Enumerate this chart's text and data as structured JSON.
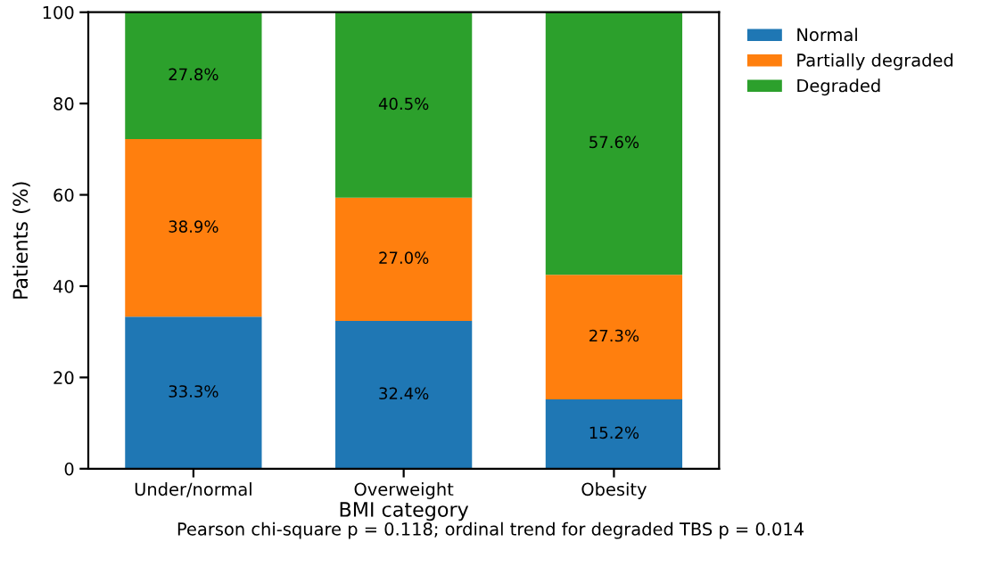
{
  "chart_data": {
    "type": "bar",
    "stacked": true,
    "xlabel": "BMI category",
    "ylabel": "Patients (%)",
    "categories": [
      "Under/normal",
      "Overweight",
      "Obesity"
    ],
    "series": [
      {
        "name": "Normal",
        "color": "#1f77b4",
        "values": [
          33.3,
          32.4,
          15.2
        ],
        "value_labels": [
          "33.3%",
          "32.4%",
          "15.2%"
        ]
      },
      {
        "name": "Partially degraded",
        "color": "#ff7f0e",
        "values": [
          38.9,
          27.0,
          27.3
        ],
        "value_labels": [
          "38.9%",
          "27.0%",
          "27.3%"
        ]
      },
      {
        "name": "Degraded",
        "color": "#2ca02c",
        "values": [
          27.8,
          40.5,
          57.6
        ],
        "value_labels": [
          "27.8%",
          "40.5%",
          "57.6%"
        ]
      }
    ],
    "ylim": [
      0,
      100
    ],
    "yticks": [
      0,
      20,
      40,
      60,
      80,
      100
    ],
    "grid": false,
    "legend": "top right",
    "annotations": [
      "Pearson chi-square p = 0.118; ordinal trend for degraded TBS p = 0.014"
    ]
  }
}
